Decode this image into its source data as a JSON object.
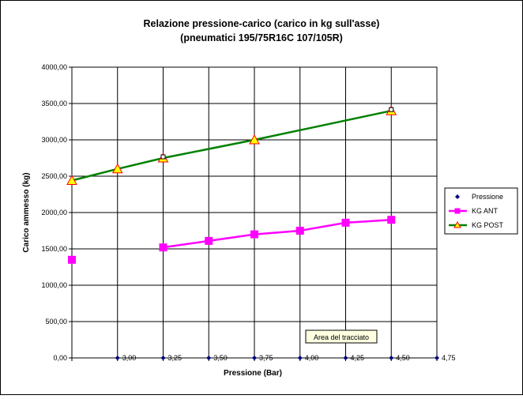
{
  "chart_data": {
    "type": "line",
    "title": "Relazione pressione-carico (carico in kg sull'asse)",
    "subtitle": "(pneumatici 195/75R16C 107/105R)",
    "xlabel": "Pressione (Bar)",
    "ylabel": "Carico ammesso (kg)",
    "ylim": [
      0,
      4000
    ],
    "yticks": [
      "0,00",
      "500,00",
      "1000,00",
      "1500,00",
      "2000,00",
      "2500,00",
      "3000,00",
      "3500,00",
      "4000,00"
    ],
    "xlim": [
      2.75,
      4.75
    ],
    "x_categories": [
      "3,00",
      "3,25",
      "3,50",
      "3,75",
      "4,00",
      "4,25",
      "4,50",
      "4,75"
    ],
    "grid": true,
    "legend_position": "right",
    "series": [
      {
        "name": "Pressione",
        "color": "#000080",
        "marker": "diamond",
        "line": false,
        "x": [
          3.0,
          3.25,
          3.5,
          3.75,
          4.0,
          4.25,
          4.5,
          4.75
        ],
        "y": [
          0,
          0,
          0,
          0,
          0,
          0,
          0,
          0
        ]
      },
      {
        "name": "KG ANT",
        "color": "#ff00ff",
        "marker": "square",
        "line": true,
        "x": [
          2.75,
          3.25,
          3.5,
          3.75,
          4.0,
          4.25,
          4.5
        ],
        "y": [
          1350,
          1520,
          1610,
          1700,
          1750,
          1860,
          1900
        ],
        "line_from_index": 1
      },
      {
        "name": "KG POST",
        "color": "#008000",
        "marker": "triangle",
        "marker_fill": "#ffff00",
        "marker_stroke": "#ff0000",
        "line": true,
        "x": [
          2.75,
          3.0,
          3.25,
          3.75,
          4.5
        ],
        "y": [
          2440,
          2600,
          2750,
          3000,
          3400
        ]
      }
    ],
    "tooltip": "Area del tracciato"
  }
}
